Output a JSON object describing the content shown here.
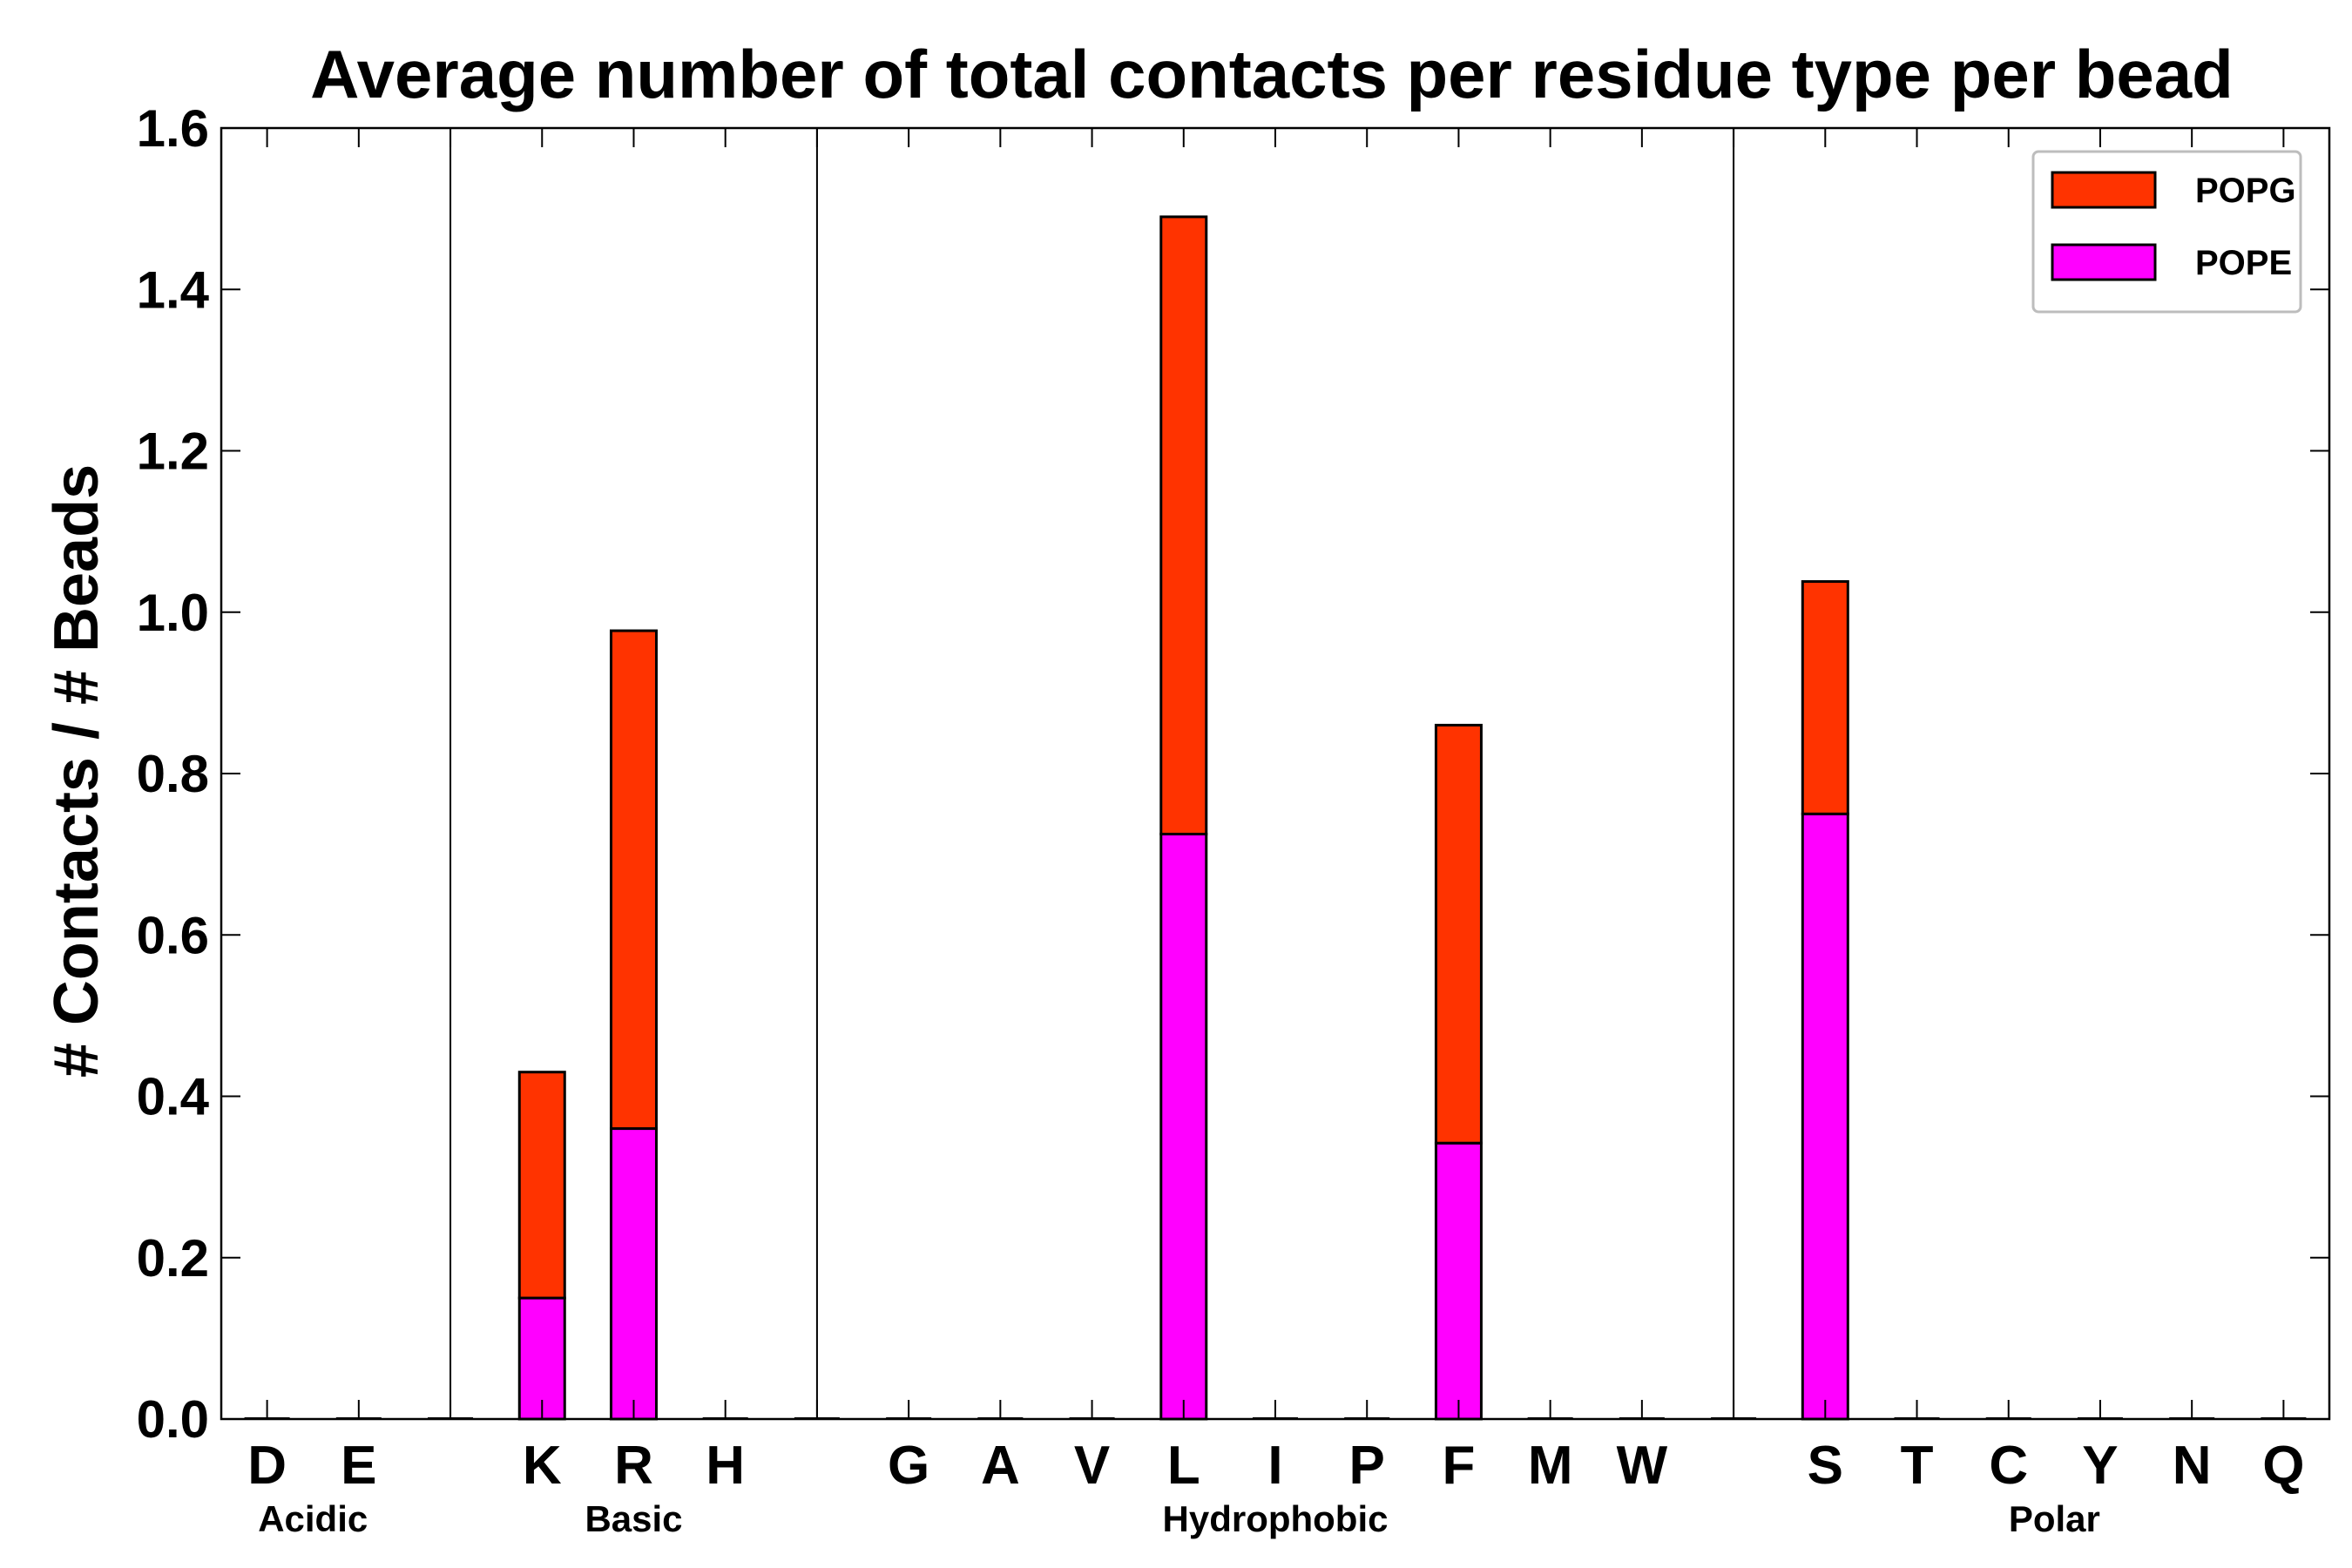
{
  "chart_data": {
    "type": "bar",
    "stacked": true,
    "title": "Average number of total contacts per residue type per bead",
    "xlabel": "",
    "ylabel": "# Contacts / # Beads",
    "ylim": [
      0,
      1.6
    ],
    "yticks": [
      "0.0",
      "0.2",
      "0.4",
      "0.6",
      "0.8",
      "1.0",
      "1.2",
      "1.4",
      "1.6"
    ],
    "categories": [
      "D",
      "E",
      "",
      "K",
      "R",
      "H",
      "",
      "G",
      "A",
      "V",
      "L",
      "I",
      "P",
      "F",
      "M",
      "W",
      "",
      "S",
      "T",
      "C",
      "Y",
      "N",
      "Q"
    ],
    "series": [
      {
        "name": "POPE",
        "color": "#ff00ff",
        "values": [
          0,
          0,
          0,
          0.15,
          0.36,
          0,
          0,
          0,
          0,
          0,
          0.725,
          0,
          0,
          0.342,
          0,
          0,
          0,
          0.75,
          0,
          0,
          0,
          0,
          0
        ]
      },
      {
        "name": "POPG",
        "color": "#ff3300",
        "values": [
          0,
          0,
          0,
          0.28,
          0.617,
          0,
          0,
          0,
          0,
          0,
          0.765,
          0,
          0,
          0.518,
          0,
          0,
          0,
          0.288,
          0,
          0,
          0,
          0,
          0
        ]
      }
    ],
    "groups": [
      {
        "label": "Acidic",
        "from": 0,
        "to": 1
      },
      {
        "label": "Basic",
        "from": 3,
        "to": 5
      },
      {
        "label": "Hydrophobic",
        "from": 7,
        "to": 15
      },
      {
        "label": "Polar",
        "from": 17,
        "to": 22
      }
    ],
    "separators_after": [
      1,
      5,
      15
    ],
    "legend": {
      "position": "top-right",
      "order": [
        "POPG",
        "POPE"
      ]
    },
    "grid": false
  }
}
